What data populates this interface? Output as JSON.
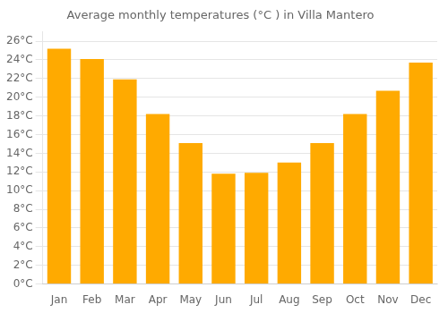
{
  "chart_data": {
    "type": "bar",
    "title": "Average monthly temperatures (°C ) in Villa Mantero",
    "categories": [
      "Jan",
      "Feb",
      "Mar",
      "Apr",
      "May",
      "Jun",
      "Jul",
      "Aug",
      "Sep",
      "Oct",
      "Nov",
      "Dec"
    ],
    "values": [
      25.2,
      24.1,
      21.9,
      18.2,
      15.1,
      11.8,
      11.9,
      13.0,
      15.1,
      18.2,
      20.7,
      23.7
    ],
    "color": "#FFAA00",
    "ylim": [
      0,
      27
    ],
    "yticks": [
      {
        "value": 0,
        "label": "0°C"
      },
      {
        "value": 2,
        "label": "2°C"
      },
      {
        "value": 4,
        "label": "4°C"
      },
      {
        "value": 6,
        "label": "6°C"
      },
      {
        "value": 8,
        "label": "8°C"
      },
      {
        "value": 10,
        "label": "10°C"
      },
      {
        "value": 12,
        "label": "12°C"
      },
      {
        "value": 14,
        "label": "14°C"
      },
      {
        "value": 16,
        "label": "16°C"
      },
      {
        "value": 18,
        "label": "18°C"
      },
      {
        "value": 20,
        "label": "20°C"
      },
      {
        "value": 22,
        "label": "22°C"
      },
      {
        "value": 24,
        "label": "24°C"
      },
      {
        "value": 26,
        "label": "26°C"
      }
    ],
    "grid": true
  }
}
